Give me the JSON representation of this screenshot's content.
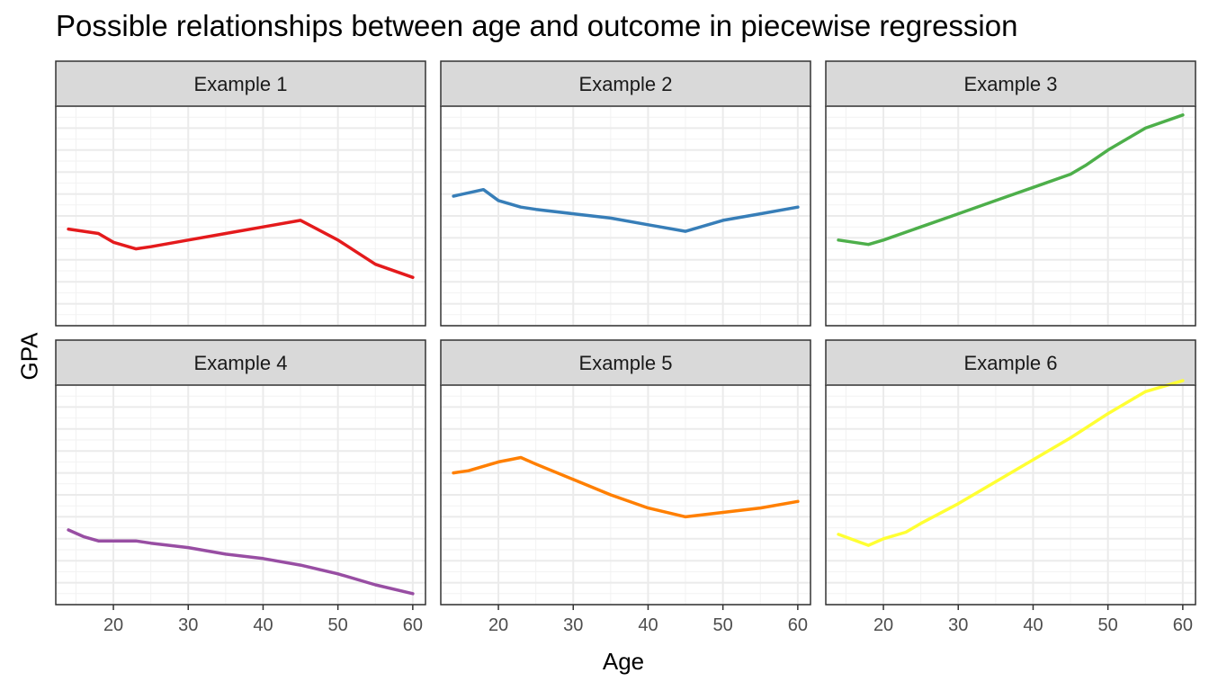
{
  "title": "Possible relationships between age and outcome in piecewise regression",
  "chart_data": {
    "type": "line",
    "title": "Possible relationships between age and outcome in piecewise regression",
    "xlabel": "Age",
    "ylabel": "GPA",
    "xlim": [
      12.3,
      61.7
    ],
    "ylim": [
      0,
      10
    ],
    "x_ticks": [
      20,
      30,
      40,
      50,
      60
    ],
    "y_ticks_shown": false,
    "grid": true,
    "layout": "facets 2 rows x 3 columns, shared axes",
    "panels": [
      {
        "label": "Example 1",
        "color": "#E41A1C",
        "x": [
          14,
          18,
          20,
          23,
          25,
          30,
          35,
          40,
          45,
          50,
          55,
          60
        ],
        "y": [
          4.4,
          4.2,
          3.8,
          3.5,
          3.6,
          3.9,
          4.2,
          4.5,
          4.8,
          3.9,
          2.8,
          2.2
        ]
      },
      {
        "label": "Example 2",
        "color": "#377EB8",
        "x": [
          14,
          18,
          20,
          23,
          25,
          30,
          35,
          40,
          45,
          50,
          55,
          60
        ],
        "y": [
          5.9,
          6.2,
          5.7,
          5.4,
          5.3,
          5.1,
          4.9,
          4.6,
          4.3,
          4.8,
          5.1,
          5.4
        ]
      },
      {
        "label": "Example 3",
        "color": "#4DAF4A",
        "x": [
          14,
          18,
          20,
          25,
          30,
          35,
          40,
          45,
          47,
          50,
          55,
          60
        ],
        "y": [
          3.9,
          3.7,
          3.9,
          4.5,
          5.1,
          5.7,
          6.3,
          6.9,
          7.3,
          8.0,
          9.0,
          9.6
        ]
      },
      {
        "label": "Example 4",
        "color": "#984EA3",
        "x": [
          14,
          16,
          18,
          20,
          23,
          25,
          30,
          35,
          40,
          45,
          50,
          55,
          60
        ],
        "y": [
          3.4,
          3.1,
          2.9,
          2.9,
          2.9,
          2.8,
          2.6,
          2.3,
          2.1,
          1.8,
          1.4,
          0.9,
          0.5
        ]
      },
      {
        "label": "Example 5",
        "color": "#FF7F00",
        "x": [
          14,
          16,
          18,
          20,
          23,
          25,
          30,
          35,
          40,
          45,
          50,
          55,
          60
        ],
        "y": [
          6.0,
          6.1,
          6.3,
          6.5,
          6.7,
          6.4,
          5.7,
          5.0,
          4.4,
          4.0,
          4.2,
          4.4,
          4.7
        ]
      },
      {
        "label": "Example 6",
        "color": "#FFFF33",
        "x": [
          14,
          18,
          20,
          23,
          25,
          30,
          35,
          40,
          45,
          50,
          55,
          60
        ],
        "y": [
          3.2,
          2.7,
          3.0,
          3.3,
          3.7,
          4.6,
          5.6,
          6.6,
          7.6,
          8.7,
          9.7,
          10.2
        ]
      }
    ]
  }
}
